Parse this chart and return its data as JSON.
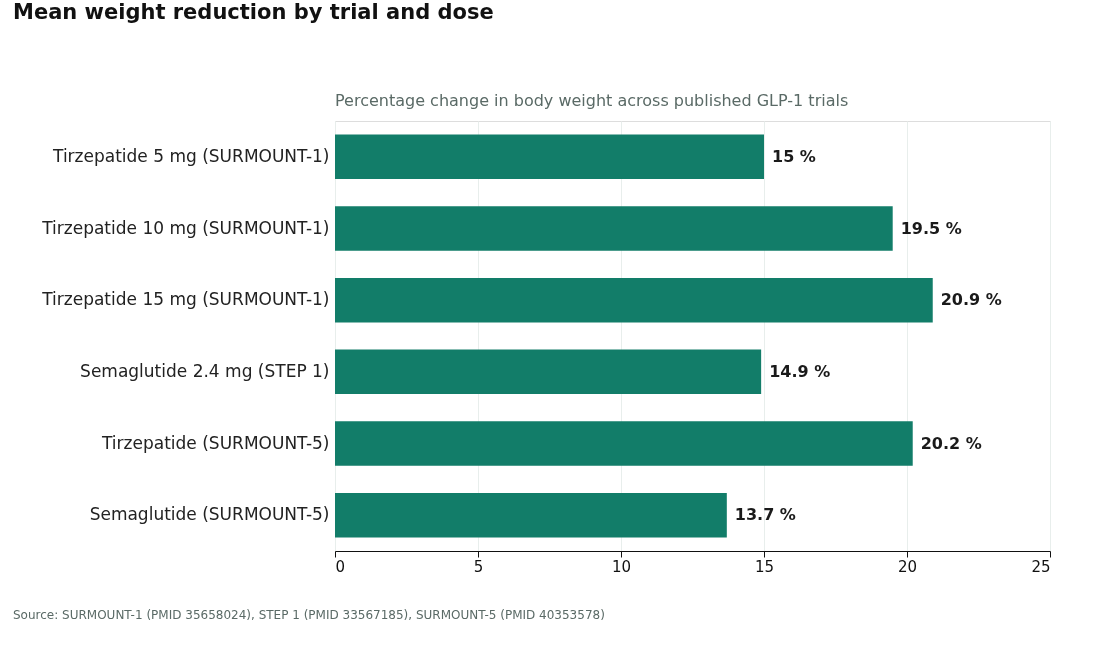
{
  "chart_data": {
    "type": "bar",
    "orientation": "horizontal",
    "title": "Mean weight reduction by trial and dose",
    "subtitle": "Percentage change in body weight across published GLP-1 trials",
    "categories": [
      "Tirzepatide 5 mg (SURMOUNT-1)",
      "Tirzepatide 10 mg (SURMOUNT-1)",
      "Tirzepatide 15 mg (SURMOUNT-1)",
      "Semaglutide 2.4 mg (STEP 1)",
      "Tirzepatide (SURMOUNT-5)",
      "Semaglutide (SURMOUNT-5)"
    ],
    "values": [
      15,
      19.5,
      20.9,
      14.9,
      20.2,
      13.7
    ],
    "value_labels": [
      "15 %",
      "19.5 %",
      "20.9 %",
      "14.9 %",
      "20.2 %",
      "13.7 %"
    ],
    "color": "#127d69",
    "xlim": [
      0,
      25
    ],
    "xticks": [
      0,
      5,
      10,
      15,
      20,
      25
    ],
    "grid": "x",
    "annotations": [
      "Source: SURMOUNT-1 (PMID 35658024), STEP 1 (PMID 33567185), SURMOUNT-5 (PMID 40353578)"
    ]
  }
}
